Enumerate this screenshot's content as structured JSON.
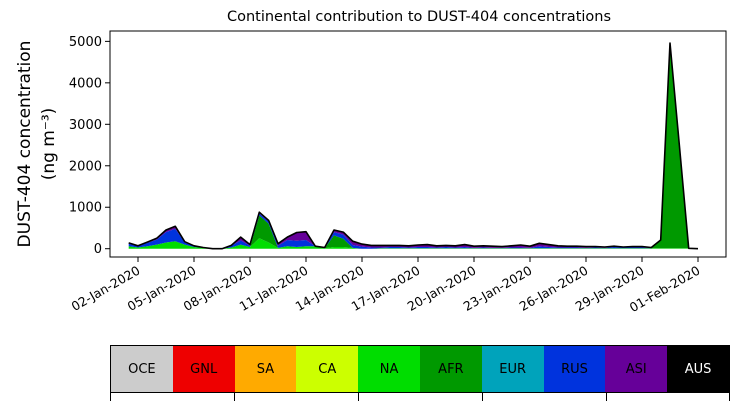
{
  "chart_data": {
    "type": "area",
    "stacked": true,
    "title": "Continental contribution to DUST-404 concentrations",
    "ylabel_line1": "DUST-404 concentration",
    "ylabel_line2": "(ng m⁻³)",
    "xlabel": "",
    "ylim": [
      -200,
      5250
    ],
    "yticks": [
      0,
      1000,
      2000,
      3000,
      4000,
      5000
    ],
    "xlim_days": [
      -1.5,
      31.5
    ],
    "x_origin": "2020-01-01",
    "xtick_labels": [
      "02-Jan-2020",
      "05-Jan-2020",
      "08-Jan-2020",
      "11-Jan-2020",
      "14-Jan-2020",
      "17-Jan-2020",
      "20-Jan-2020",
      "23-Jan-2020",
      "26-Jan-2020",
      "29-Jan-2020",
      "01-Feb-2020"
    ],
    "xtick_days": [
      0,
      3,
      6,
      9,
      12,
      15,
      18,
      21,
      24,
      27,
      30
    ],
    "x": [
      -0.5,
      0,
      0.5,
      1,
      1.5,
      2,
      2.5,
      3,
      3.5,
      4,
      4.5,
      5,
      5.5,
      6,
      6.5,
      7,
      7.5,
      8,
      8.5,
      9,
      9.5,
      10,
      10.5,
      11,
      11.5,
      12,
      12.5,
      13,
      13.5,
      14,
      14.5,
      15,
      15.5,
      16,
      16.5,
      17,
      17.5,
      18,
      18.5,
      19,
      19.5,
      20,
      20.5,
      21,
      21.5,
      22,
      22.5,
      23,
      23.5,
      24,
      24.5,
      25,
      25.5,
      26,
      26.5,
      27,
      27.5,
      28,
      28.5,
      29,
      29.5,
      30
    ],
    "series": [
      {
        "name": "NA",
        "color": "#00dd00",
        "values": [
          60,
          30,
          60,
          100,
          150,
          180,
          100,
          40,
          20,
          0,
          0,
          30,
          100,
          40,
          250,
          150,
          20,
          60,
          40,
          60,
          60,
          10,
          40,
          40,
          20,
          0,
          0,
          10,
          10,
          10,
          10,
          10,
          10,
          10,
          10,
          10,
          10,
          10,
          10,
          10,
          10,
          10,
          10,
          10,
          10,
          10,
          10,
          10,
          10,
          10,
          10,
          10,
          10,
          10,
          10,
          10,
          10,
          10,
          10,
          10,
          10,
          0
        ]
      },
      {
        "name": "AFR",
        "color": "#009900",
        "values": [
          0,
          0,
          0,
          0,
          0,
          0,
          0,
          0,
          0,
          0,
          0,
          0,
          0,
          0,
          550,
          450,
          0,
          0,
          0,
          0,
          0,
          0,
          280,
          200,
          0,
          0,
          0,
          0,
          0,
          0,
          0,
          0,
          0,
          0,
          0,
          0,
          0,
          0,
          0,
          0,
          0,
          0,
          0,
          0,
          0,
          0,
          0,
          0,
          0,
          0,
          0,
          0,
          0,
          0,
          0,
          0,
          0,
          200,
          4950,
          2500,
          0,
          0
        ]
      },
      {
        "name": "RUS",
        "color": "#0033dd",
        "values": [
          60,
          30,
          80,
          120,
          250,
          300,
          50,
          20,
          10,
          0,
          0,
          40,
          100,
          30,
          50,
          50,
          50,
          150,
          150,
          150,
          0,
          10,
          80,
          100,
          70,
          50,
          30,
          20,
          30,
          30,
          20,
          30,
          30,
          20,
          30,
          20,
          30,
          10,
          20,
          10,
          10,
          20,
          20,
          10,
          50,
          30,
          20,
          20,
          20,
          10,
          20,
          10,
          30,
          20,
          20,
          20,
          10,
          0,
          0,
          0,
          0,
          0
        ]
      },
      {
        "name": "ASI",
        "color": "#660099",
        "values": [
          20,
          10,
          20,
          30,
          50,
          60,
          20,
          10,
          0,
          0,
          0,
          10,
          80,
          30,
          30,
          30,
          50,
          70,
          200,
          200,
          0,
          10,
          50,
          60,
          90,
          60,
          50,
          50,
          40,
          40,
          40,
          50,
          60,
          40,
          40,
          40,
          60,
          40,
          40,
          40,
          30,
          40,
          60,
          40,
          70,
          60,
          40,
          30,
          30,
          30,
          20,
          20,
          20,
          10,
          20,
          20,
          10,
          0,
          0,
          0,
          0,
          0
        ]
      }
    ],
    "total_line_color": "#000000",
    "grid": false,
    "legend_position": "bottom-colorbar"
  },
  "legend": {
    "items": [
      {
        "name": "OCE",
        "color": "#cccccc",
        "text_color": "#000000"
      },
      {
        "name": "GNL",
        "color": "#ee0000",
        "text_color": "#000000"
      },
      {
        "name": "SA",
        "color": "#ffaa00",
        "text_color": "#000000"
      },
      {
        "name": "CA",
        "color": "#ccff00",
        "text_color": "#000000"
      },
      {
        "name": "NA",
        "color": "#00dd00",
        "text_color": "#000000"
      },
      {
        "name": "AFR",
        "color": "#009900",
        "text_color": "#000000"
      },
      {
        "name": "EUR",
        "color": "#00a3bb",
        "text_color": "#000000"
      },
      {
        "name": "RUS",
        "color": "#0033dd",
        "text_color": "#000000"
      },
      {
        "name": "ASI",
        "color": "#660099",
        "text_color": "#000000"
      },
      {
        "name": "AUS",
        "color": "#000000",
        "text_color": "#ffffff"
      }
    ]
  }
}
